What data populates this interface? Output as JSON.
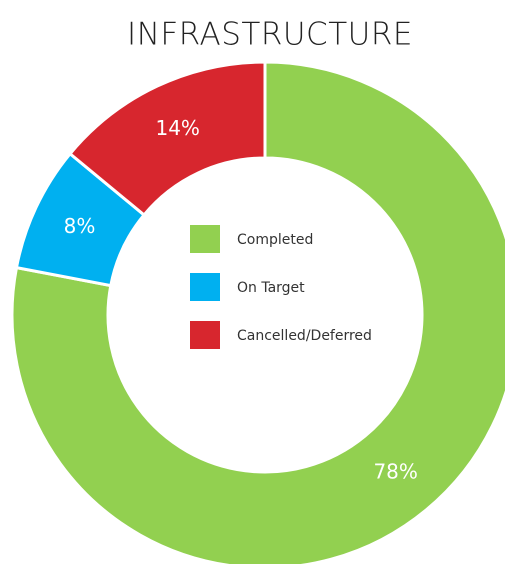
{
  "chart_data": {
    "type": "donut",
    "title": "INFRASTRUCTURE",
    "categories": [
      "Completed",
      "On Target",
      "Cancelled/Deferred"
    ],
    "values": [
      78,
      8,
      14
    ],
    "value_labels": [
      "78%",
      "8%",
      "14%"
    ],
    "colors": [
      "#92d050",
      "#00b0f0",
      "#d7262e"
    ],
    "legend": "center"
  }
}
